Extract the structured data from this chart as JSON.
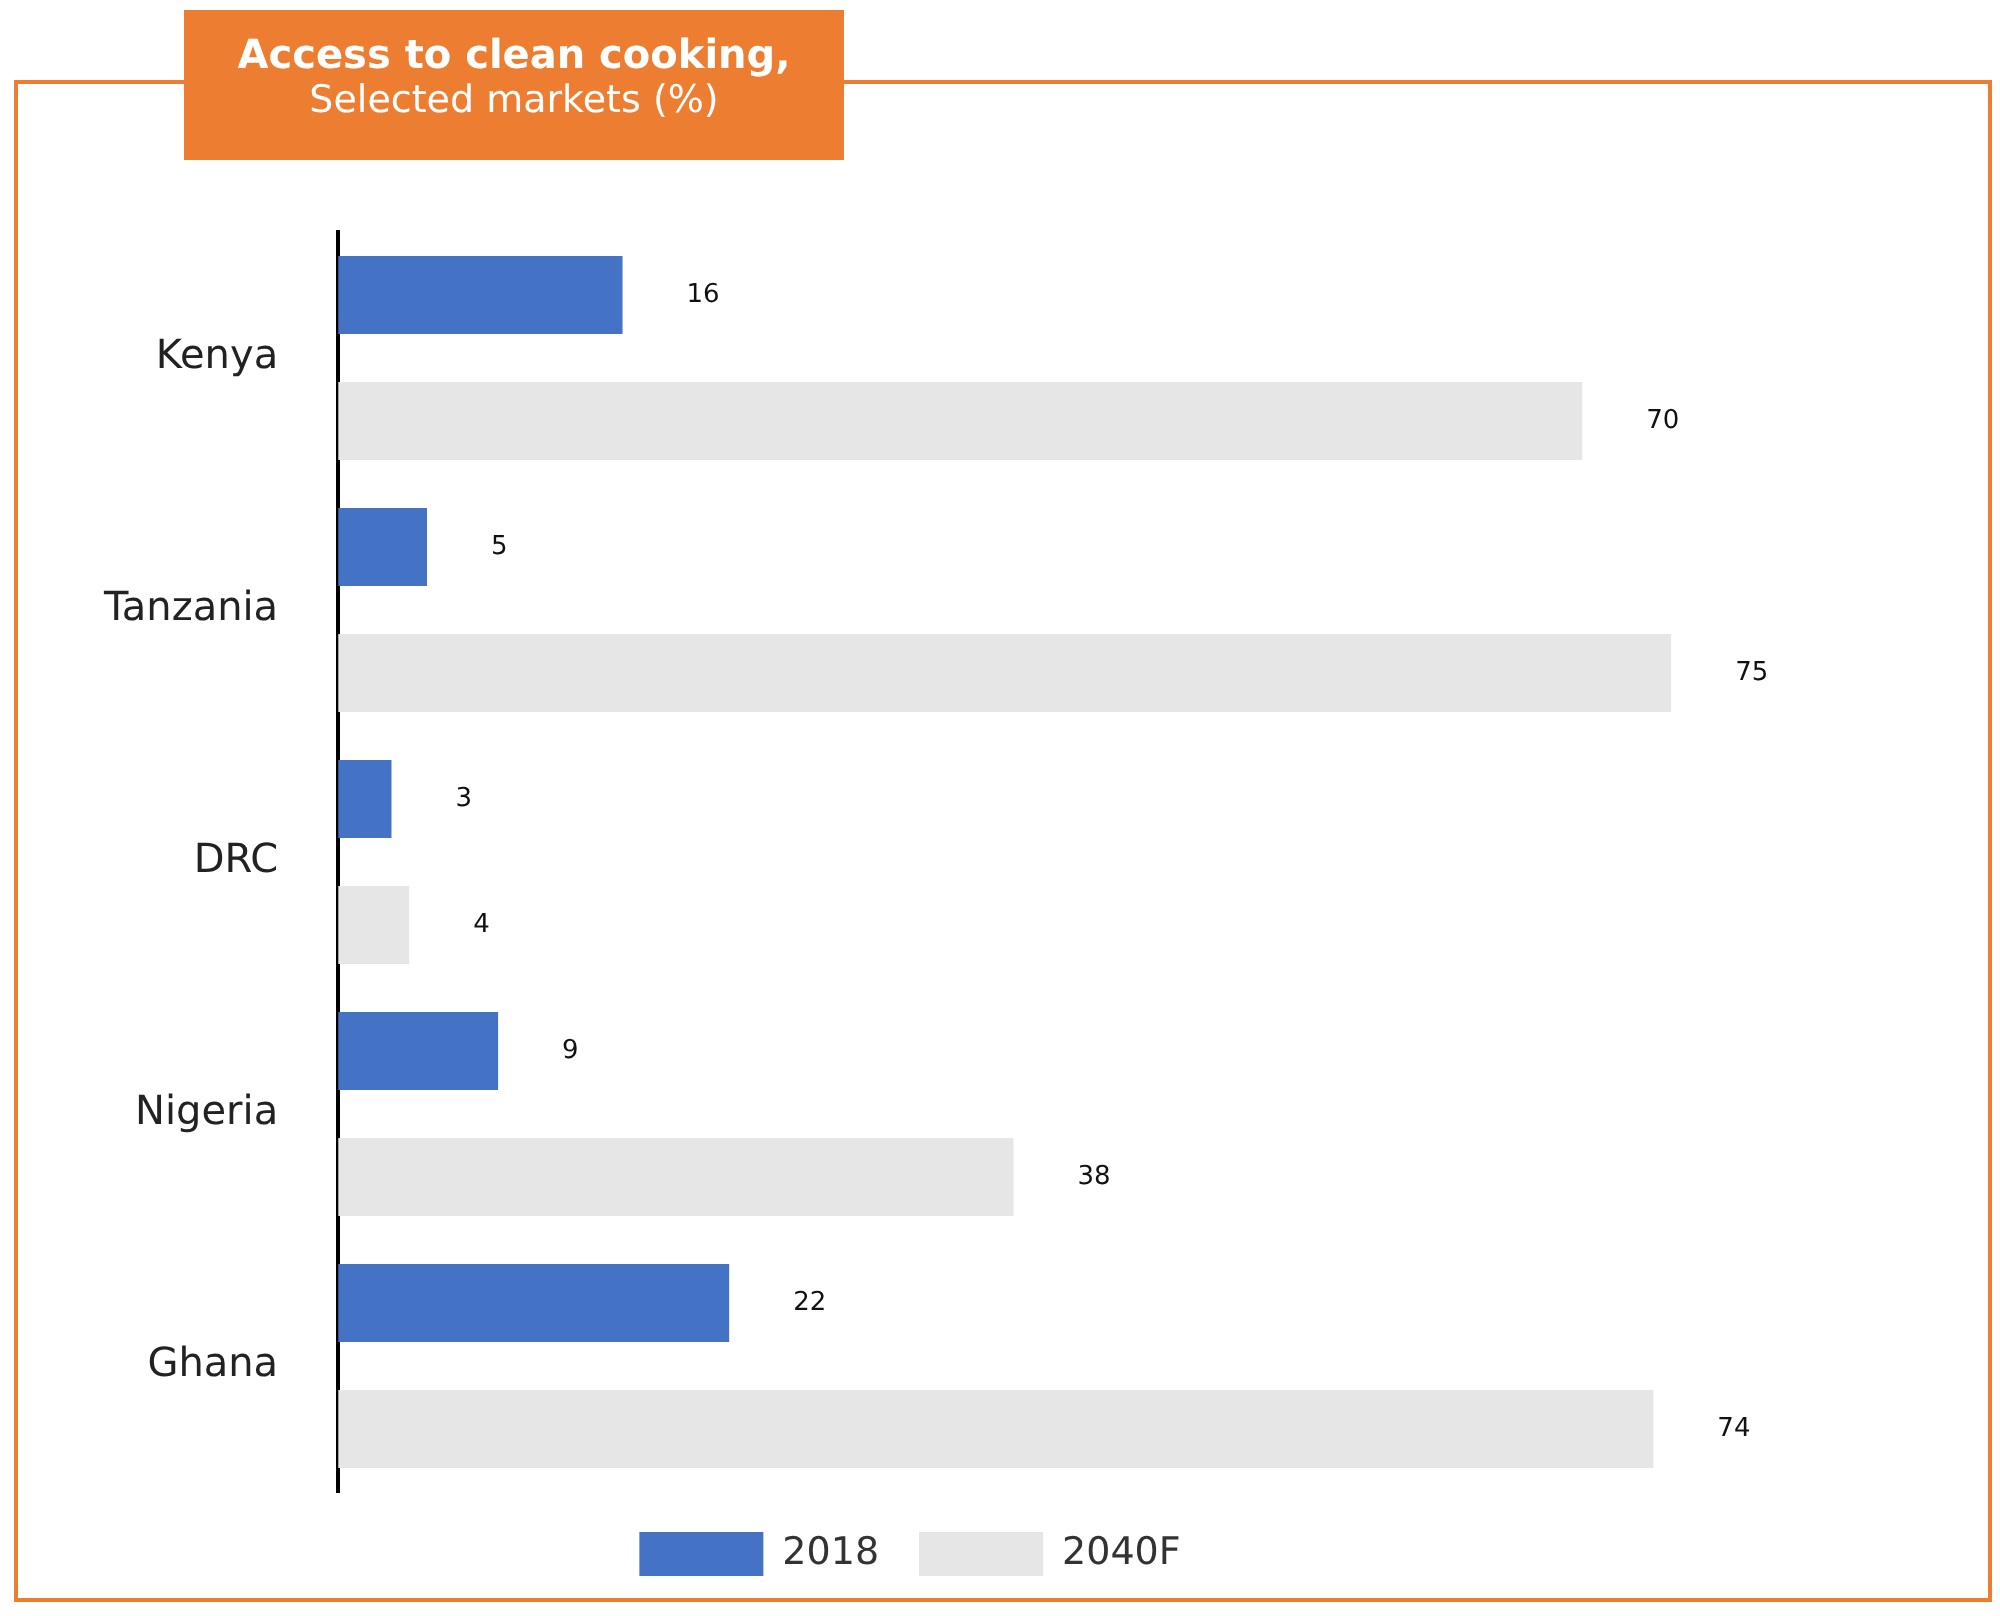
{
  "chart_data": {
    "type": "bar",
    "orientation": "horizontal",
    "title": "Access to clean cooking,",
    "subtitle": "Selected markets (%)",
    "categories": [
      "Kenya",
      "Tanzania",
      "DRC",
      "Nigeria",
      "Ghana"
    ],
    "series": [
      {
        "name": "2018",
        "color": "#4472c4",
        "values": [
          16,
          5,
          3,
          9,
          22
        ]
      },
      {
        "name": "2040F",
        "color": "#e6e6e6",
        "values": [
          70,
          75,
          4,
          38,
          74
        ]
      }
    ],
    "data_labels": true,
    "legend": "bottom",
    "tick_labels": "y"
  }
}
